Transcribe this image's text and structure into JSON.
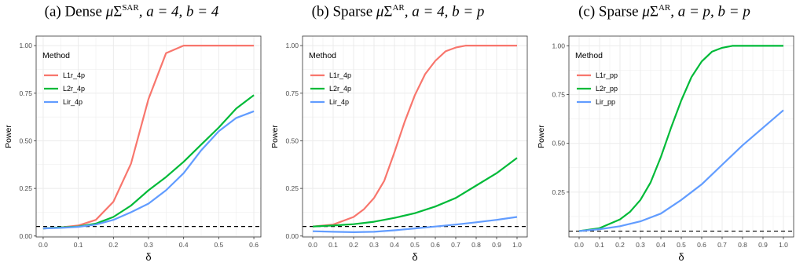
{
  "colors": {
    "L1r": "#f8766d",
    "L2r": "#00ba38",
    "Lir": "#619cff",
    "grid": "#ebebeb",
    "panel_border": "#333333",
    "ref_line": "#000000"
  },
  "chart_data": [
    {
      "type": "line",
      "title": "(a) Dense μ, Σ^SAR, a = 4, b = 4",
      "title_parts": {
        "prefix": "(a) Dense ",
        "mu": "μ",
        "sigma": "Σ",
        "sup": "SAR",
        "suffix": ", a = 4, b = 4"
      },
      "xlabel": "δ",
      "ylabel": "Power",
      "xlim": [
        -0.02,
        0.62
      ],
      "ylim": [
        -0.005,
        1.05
      ],
      "xticks": [
        0.0,
        0.1,
        0.2,
        0.3,
        0.4,
        0.5,
        0.6
      ],
      "xtick_labels": [
        "0.0",
        "0.1",
        "0.2",
        "0.3",
        "0.4",
        "0.5",
        "0.6"
      ],
      "yticks": [
        0.0,
        0.25,
        0.5,
        0.75,
        1.0
      ],
      "ytick_labels": [
        "0.00",
        "0.25",
        "0.50",
        "0.75",
        "1.00"
      ],
      "hline": 0.05,
      "legend": {
        "title": "Method",
        "position": "top-left"
      },
      "series": [
        {
          "name": "L1r_4p",
          "color_key": "L1r",
          "x": [
            0.0,
            0.05,
            0.1,
            0.15,
            0.2,
            0.25,
            0.3,
            0.35,
            0.4,
            0.45,
            0.5,
            0.55,
            0.6
          ],
          "values": [
            0.04,
            0.045,
            0.055,
            0.085,
            0.18,
            0.38,
            0.72,
            0.96,
            1.0,
            1.0,
            1.0,
            1.0,
            1.0
          ]
        },
        {
          "name": "L2r_4p",
          "color_key": "L2r",
          "x": [
            0.0,
            0.05,
            0.1,
            0.15,
            0.2,
            0.25,
            0.3,
            0.35,
            0.4,
            0.45,
            0.5,
            0.55,
            0.6
          ],
          "values": [
            0.04,
            0.045,
            0.05,
            0.065,
            0.1,
            0.16,
            0.24,
            0.31,
            0.39,
            0.48,
            0.57,
            0.67,
            0.74
          ]
        },
        {
          "name": "Lir_4p",
          "color_key": "Lir",
          "x": [
            0.0,
            0.05,
            0.1,
            0.15,
            0.2,
            0.25,
            0.3,
            0.35,
            0.4,
            0.45,
            0.5,
            0.55,
            0.6
          ],
          "values": [
            0.04,
            0.043,
            0.048,
            0.06,
            0.085,
            0.125,
            0.17,
            0.24,
            0.33,
            0.45,
            0.55,
            0.62,
            0.655
          ]
        }
      ]
    },
    {
      "type": "line",
      "title": "(b) Sparse μ, Σ^AR, a = 4, b = p",
      "title_parts": {
        "prefix": "(b) Sparse ",
        "mu": "μ",
        "sigma": "Σ",
        "sup": "AR",
        "suffix": ", a = 4, b = p"
      },
      "xlabel": "δ",
      "ylabel": "Power",
      "xlim": [
        -0.05,
        1.05
      ],
      "ylim": [
        -0.005,
        1.05
      ],
      "xticks": [
        0.0,
        0.1,
        0.2,
        0.3,
        0.4,
        0.5,
        0.6,
        0.7,
        0.8,
        0.9,
        1.0
      ],
      "xtick_labels": [
        "0.0",
        "0.1",
        "0.2",
        "0.3",
        "0.4",
        "0.5",
        "0.6",
        "0.7",
        "0.8",
        "0.9",
        "1.0"
      ],
      "yticks": [
        0.0,
        0.25,
        0.5,
        0.75,
        1.0
      ],
      "ytick_labels": [
        "0.00",
        "0.25",
        "0.50",
        "0.75",
        "1.00"
      ],
      "hline": 0.05,
      "legend": {
        "title": "Method",
        "position": "top-left"
      },
      "series": [
        {
          "name": "L1r_4p",
          "color_key": "L1r",
          "x": [
            0.0,
            0.1,
            0.2,
            0.25,
            0.3,
            0.35,
            0.4,
            0.45,
            0.5,
            0.55,
            0.6,
            0.65,
            0.7,
            0.75,
            0.8,
            0.9,
            1.0
          ],
          "values": [
            0.05,
            0.06,
            0.1,
            0.14,
            0.2,
            0.29,
            0.44,
            0.6,
            0.74,
            0.85,
            0.92,
            0.97,
            0.99,
            1.0,
            1.0,
            1.0,
            1.0
          ]
        },
        {
          "name": "L2r_4p",
          "color_key": "L2r",
          "x": [
            0.0,
            0.1,
            0.2,
            0.3,
            0.4,
            0.5,
            0.6,
            0.7,
            0.8,
            0.9,
            1.0
          ],
          "values": [
            0.05,
            0.055,
            0.062,
            0.075,
            0.095,
            0.12,
            0.155,
            0.2,
            0.265,
            0.33,
            0.41
          ]
        },
        {
          "name": "Lir_4p",
          "color_key": "Lir",
          "x": [
            0.0,
            0.1,
            0.2,
            0.3,
            0.4,
            0.5,
            0.6,
            0.7,
            0.8,
            0.9,
            1.0
          ],
          "values": [
            0.025,
            0.022,
            0.02,
            0.022,
            0.03,
            0.04,
            0.05,
            0.06,
            0.072,
            0.085,
            0.1
          ]
        }
      ]
    },
    {
      "type": "line",
      "title": "(c) Sparse μ, Σ^AR, a = p, b = p",
      "title_parts": {
        "prefix": "(c) Sparse ",
        "mu": "μ",
        "sigma": "Σ",
        "sup": "AR",
        "suffix": ", a = p, b = p"
      },
      "xlabel": "δ",
      "ylabel": "Power",
      "xlim": [
        -0.05,
        1.05
      ],
      "ylim": [
        0.02,
        1.05
      ],
      "xticks": [
        0.0,
        0.1,
        0.2,
        0.3,
        0.4,
        0.5,
        0.6,
        0.7,
        0.8,
        0.9,
        1.0
      ],
      "xtick_labels": [
        "0.0",
        "0.1",
        "0.2",
        "0.3",
        "0.4",
        "0.5",
        "0.6",
        "0.7",
        "0.8",
        "0.9",
        "1.0"
      ],
      "yticks": [
        0.25,
        0.5,
        0.75,
        1.0
      ],
      "ytick_labels": [
        "0.25",
        "0.50",
        "0.75",
        "1.00"
      ],
      "hline": 0.05,
      "legend": {
        "title": "Method",
        "position": "top-left"
      },
      "series": [
        {
          "name": "L1r_pp",
          "color_key": "L1r",
          "x": [
            0.0
          ],
          "values": [
            0.05
          ]
        },
        {
          "name": "L2r_pp",
          "color_key": "L2r",
          "x": [
            0.0,
            0.1,
            0.2,
            0.25,
            0.3,
            0.35,
            0.4,
            0.45,
            0.5,
            0.55,
            0.6,
            0.65,
            0.7,
            0.75,
            0.8,
            0.9,
            1.0
          ],
          "values": [
            0.05,
            0.065,
            0.11,
            0.15,
            0.21,
            0.3,
            0.43,
            0.58,
            0.72,
            0.84,
            0.92,
            0.97,
            0.99,
            1.0,
            1.0,
            1.0,
            1.0
          ]
        },
        {
          "name": "Lir_pp",
          "color_key": "Lir",
          "x": [
            0.0,
            0.1,
            0.2,
            0.3,
            0.4,
            0.5,
            0.6,
            0.7,
            0.8,
            0.9,
            1.0
          ],
          "values": [
            0.05,
            0.06,
            0.075,
            0.1,
            0.14,
            0.21,
            0.29,
            0.39,
            0.49,
            0.58,
            0.67
          ]
        }
      ]
    }
  ]
}
